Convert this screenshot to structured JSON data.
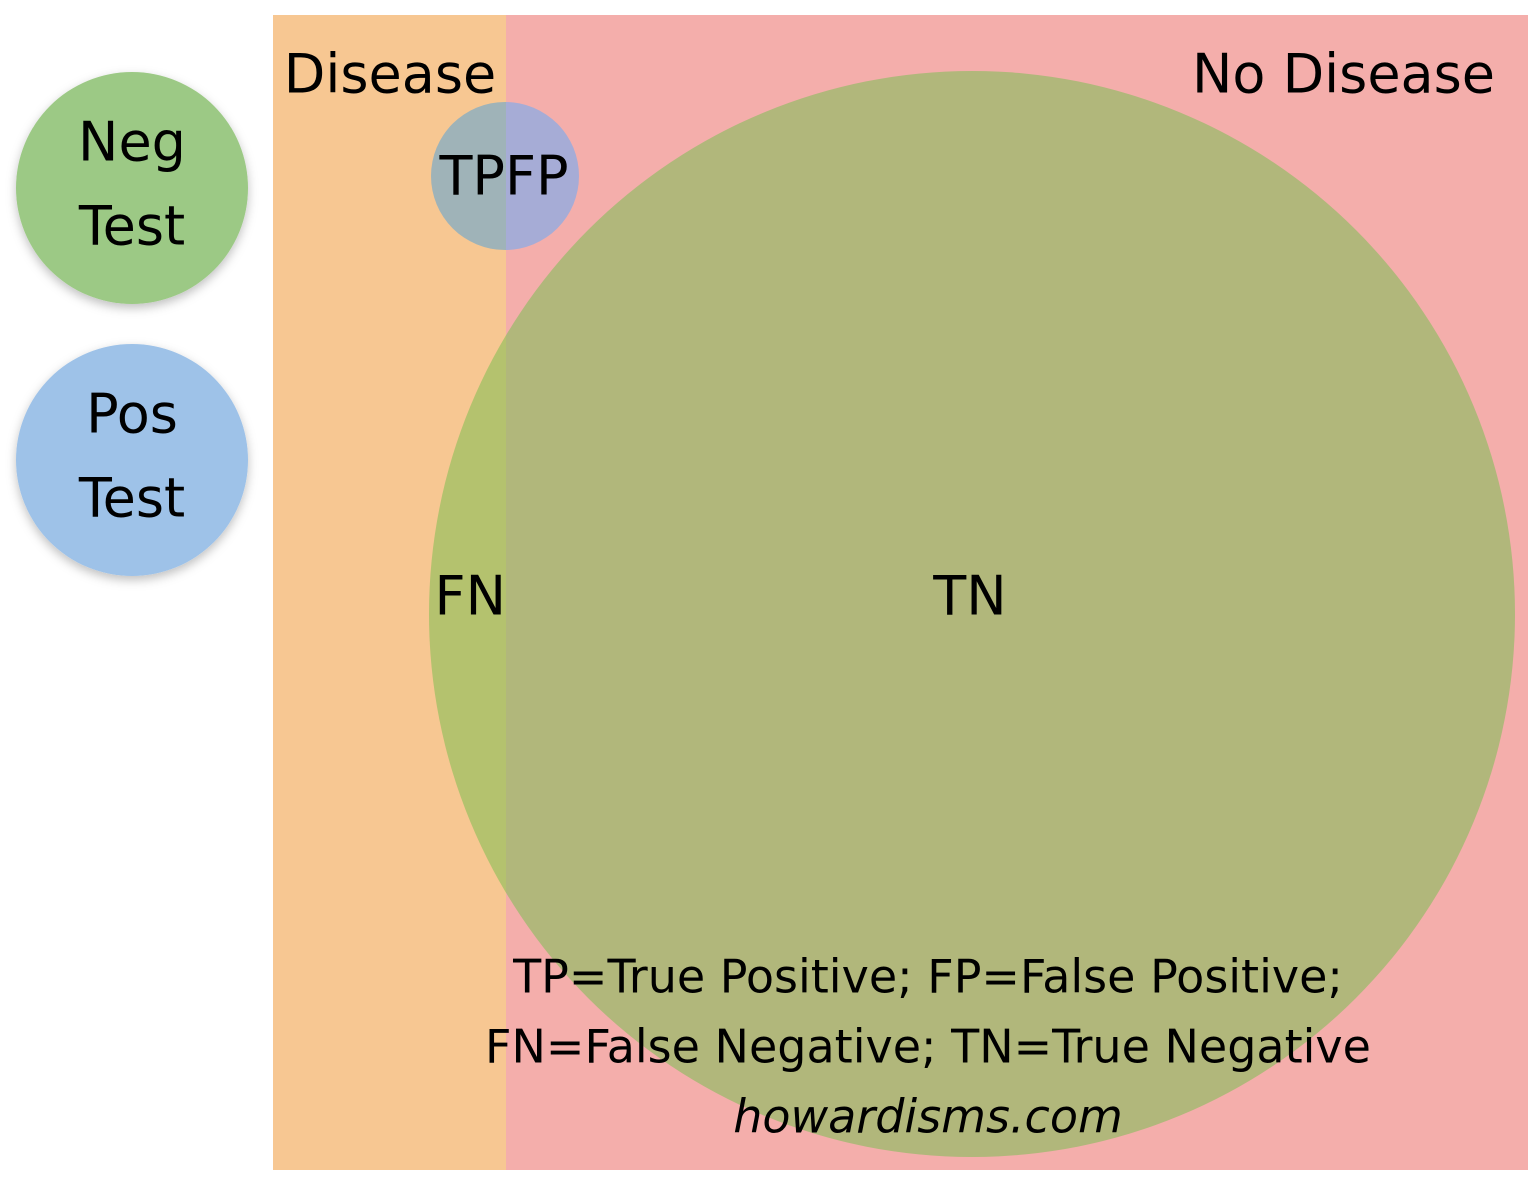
{
  "legend": [
    {
      "lines": [
        "Neg",
        "Test"
      ]
    },
    {
      "lines": [
        "Pos",
        "Test"
      ]
    }
  ],
  "regions": {
    "disease": "Disease",
    "no_disease": "No Disease"
  },
  "cells": {
    "tp": "TP",
    "fp": "FP",
    "fn": "FN",
    "tn": "TN"
  },
  "footnote": [
    "TP=True Positive; FP=False Positive;",
    "FN=False Negative; TN=True Negative",
    "howardisms.com"
  ]
}
